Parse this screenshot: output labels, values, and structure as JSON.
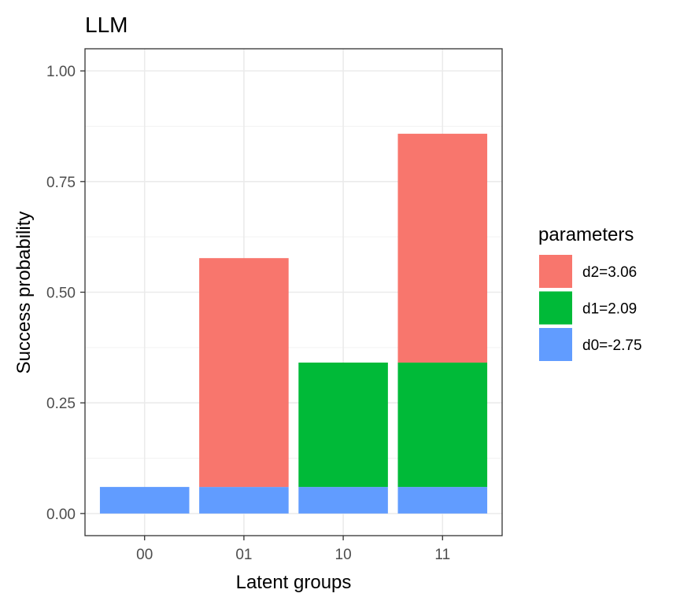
{
  "chart_data": {
    "type": "bar",
    "stacked": true,
    "title": "LLM",
    "xlabel": "Latent groups",
    "ylabel": "Success probability",
    "categories": [
      "00",
      "01",
      "10",
      "11"
    ],
    "ylim": [
      -0.05,
      1.05
    ],
    "yticks": [
      0,
      0.25,
      0.5,
      0.75,
      1.0
    ],
    "ytick_labels": [
      "0.00",
      "0.25",
      "0.50",
      "0.75",
      "1.00"
    ],
    "grid": true,
    "legend_title": "parameters",
    "legend_position": "right",
    "series": [
      {
        "name": "d0=-2.75",
        "color": "#619CFF",
        "values": [
          0.06,
          0.06,
          0.06,
          0.06
        ]
      },
      {
        "name": "d1=2.09",
        "color": "#00BA38",
        "values": [
          0,
          0,
          0.281,
          0.281
        ]
      },
      {
        "name": "d2=3.06",
        "color": "#F8766D",
        "values": [
          0,
          0.517,
          0,
          0.517
        ]
      }
    ]
  }
}
